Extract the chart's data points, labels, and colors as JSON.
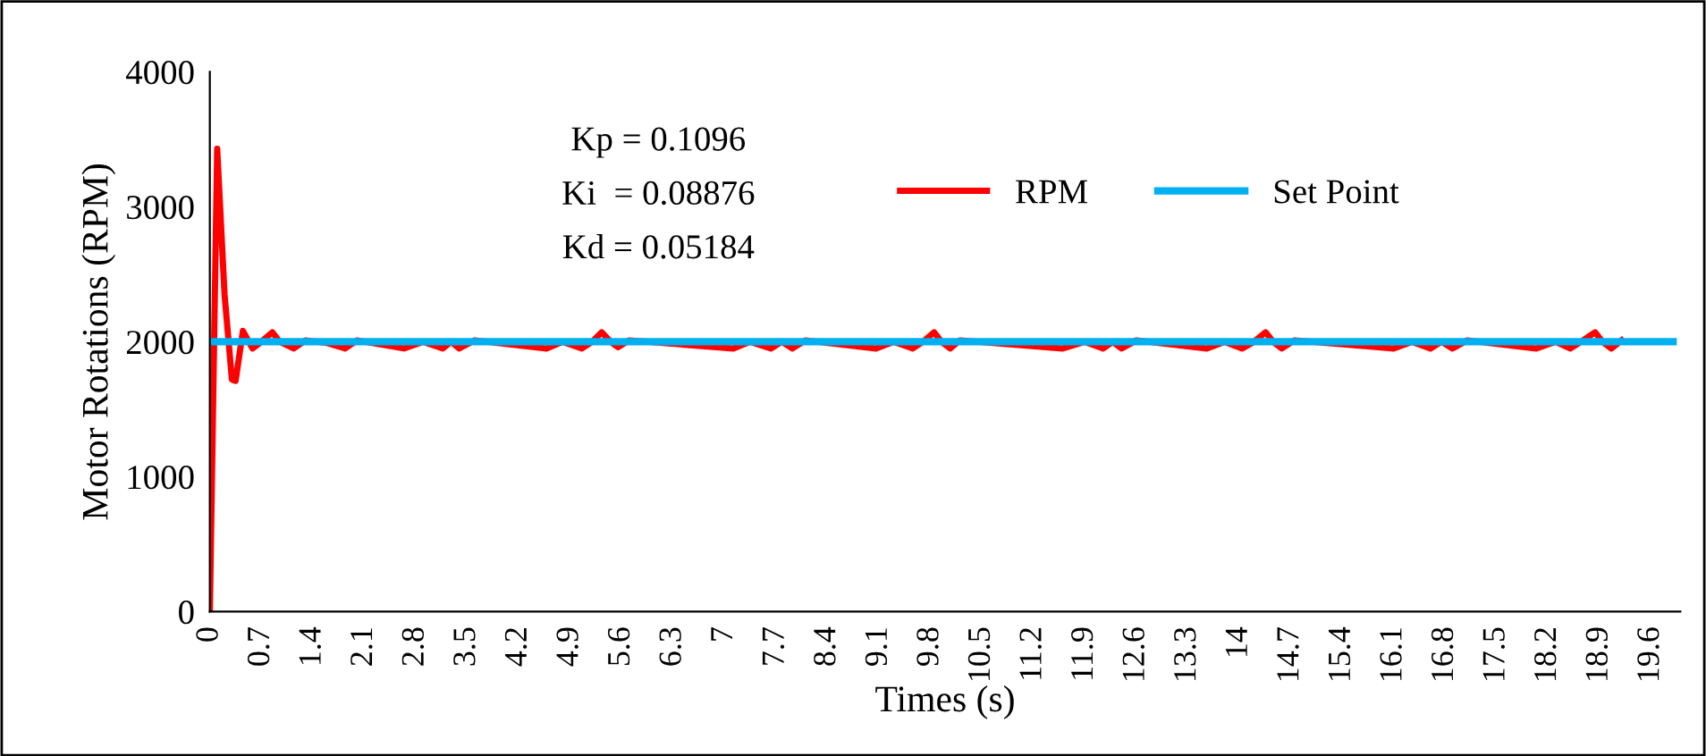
{
  "chart_data": {
    "type": "line",
    "xlabel": "Times (s)",
    "ylabel": "Motor Rotations (RPM)",
    "annotations": [
      "Kp = 0.1096",
      "Ki  = 0.08876",
      "Kd = 0.05184"
    ],
    "xlim": [
      0,
      20
    ],
    "ylim": [
      0,
      4000
    ],
    "xticks": [
      0,
      0.7,
      1.4,
      2.1,
      2.8,
      3.5,
      4.2,
      4.9,
      5.6,
      6.3,
      7,
      7.7,
      8.4,
      9.1,
      9.8,
      10.5,
      11.2,
      11.9,
      12.6,
      13.3,
      14,
      14.7,
      15.4,
      16.1,
      16.8,
      17.5,
      18.2,
      18.9,
      19.6
    ],
    "yticks": [
      0,
      1000,
      2000,
      3000,
      4000
    ],
    "grid": false,
    "legend": "top right",
    "marker": "none",
    "line_style": "solid",
    "series": [
      {
        "name": "RPM",
        "color": "#ff0000",
        "x": [
          0,
          0.1,
          0.2,
          0.3,
          0.35,
          0.45,
          0.58,
          0.7,
          0.85,
          0.95,
          1.14,
          1.3,
          1.6,
          1.84,
          2.0,
          2.64,
          2.9,
          3.17,
          3.28,
          3.39,
          3.6,
          4.58,
          4.8,
          5.06,
          5.2,
          5.33,
          5.45,
          5.55,
          5.7,
          7.12,
          7.35,
          7.63,
          7.78,
          7.92,
          8.1,
          9.06,
          9.3,
          9.56,
          9.7,
          9.85,
          9.95,
          10.07,
          10.2,
          11.6,
          11.9,
          12.15,
          12.28,
          12.4,
          12.6,
          13.56,
          13.8,
          14.04,
          14.2,
          14.36,
          14.46,
          14.58,
          14.75,
          16.1,
          16.35,
          16.6,
          16.75,
          16.9,
          17.1,
          18.04,
          18.3,
          18.5,
          18.65,
          18.84,
          18.94,
          19.06,
          19.2
        ],
        "values": [
          0,
          3430,
          2350,
          1720,
          1710,
          2080,
          1950,
          2000,
          2070,
          2000,
          1950,
          2010,
          1990,
          1950,
          2010,
          1950,
          2000,
          1950,
          2000,
          1950,
          2010,
          1950,
          2000,
          1950,
          2000,
          2070,
          2000,
          1960,
          2010,
          1950,
          2000,
          1950,
          2000,
          1950,
          2010,
          1950,
          2000,
          1950,
          2000,
          2070,
          2000,
          1950,
          2010,
          1950,
          2000,
          1950,
          2000,
          1950,
          2010,
          1950,
          2000,
          1950,
          2000,
          2070,
          2000,
          1950,
          2010,
          1950,
          2000,
          1950,
          2000,
          1950,
          2010,
          1950,
          2000,
          1950,
          2000,
          2070,
          2000,
          1950,
          2010
        ]
      },
      {
        "name": "Set Point",
        "color": "#00b0f0",
        "x": [
          0,
          19.9
        ],
        "values": [
          2000,
          2000
        ]
      }
    ]
  }
}
